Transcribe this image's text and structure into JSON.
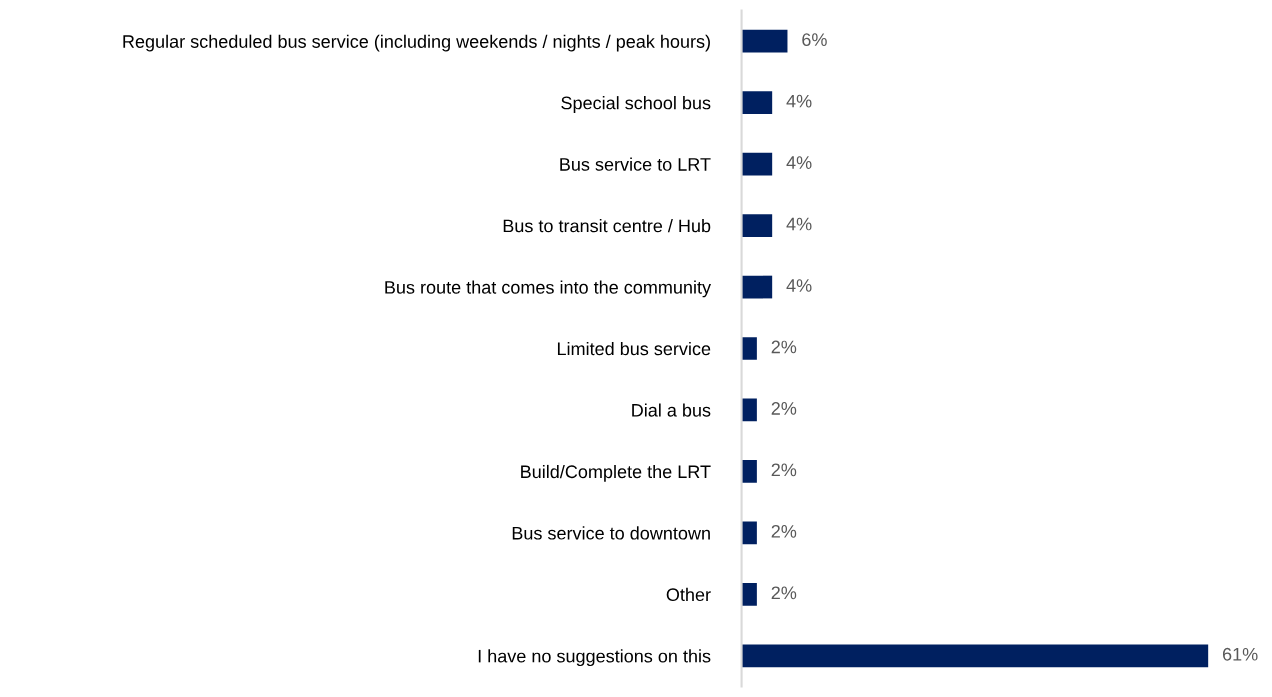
{
  "chart_data": {
    "type": "bar",
    "orientation": "horizontal",
    "categories": [
      "Regular scheduled bus service (including weekends / nights / peak hours)",
      "Special school bus",
      "Bus service to LRT",
      "Bus to transit centre / Hub",
      "Bus route that comes into the community",
      "Limited bus service",
      "Dial a bus",
      "Build/Complete the LRT",
      "Bus service to downtown",
      "Other",
      "I have no suggestions on this"
    ],
    "values": [
      6,
      4,
      4,
      4,
      4,
      2,
      2,
      2,
      2,
      2,
      61
    ],
    "value_labels": [
      "6%",
      "4%",
      "4%",
      "4%",
      "4%",
      "2%",
      "2%",
      "2%",
      "2%",
      "2%",
      "61%"
    ],
    "color": "#002060"
  }
}
